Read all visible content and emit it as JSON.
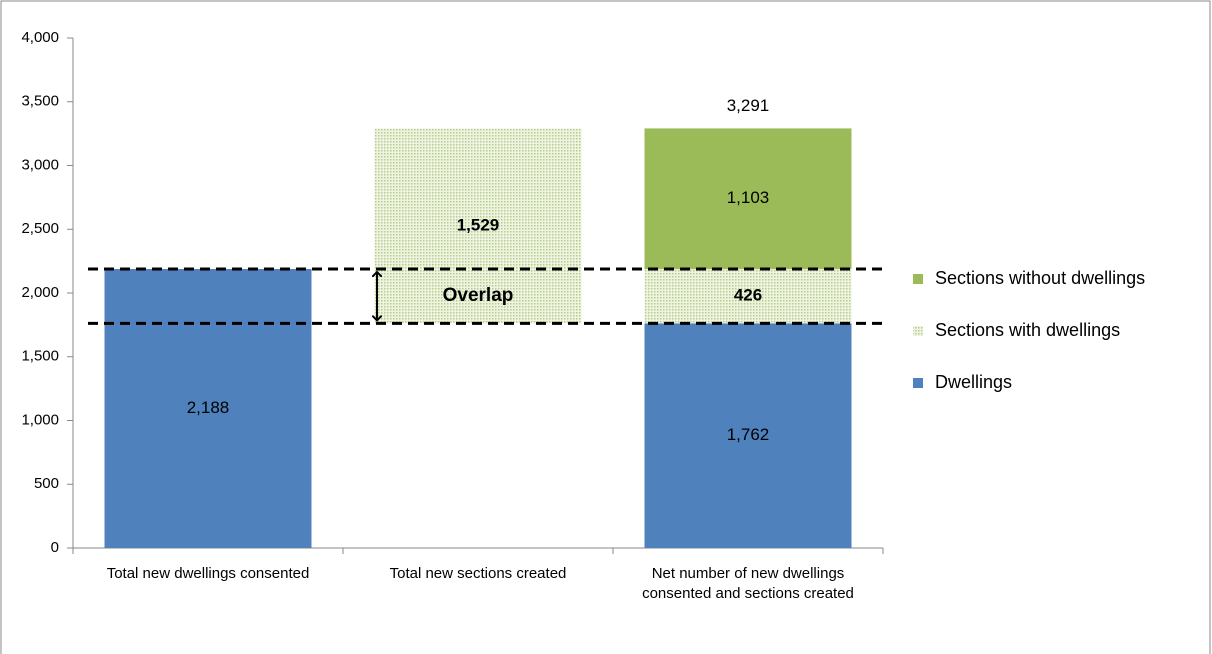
{
  "chart_data": {
    "type": "stacked-bar",
    "categories": [
      "Total new dwellings consented",
      "Total new sections created",
      "Net number of new dwellings consented and sections created"
    ],
    "series": [
      {
        "name": "Dwellings",
        "color": "#4f81bd",
        "values": [
          2188,
          null,
          1762
        ],
        "value_labels": [
          "2,188",
          null,
          "1,762"
        ]
      },
      {
        "name": "Sections with dwellings",
        "color": "#c3d69b",
        "pattern": "dotted",
        "values": [
          null,
          1529,
          426
        ],
        "value_labels": [
          null,
          "1,529",
          "426"
        ],
        "bold_labels": true
      },
      {
        "name": "Sections without dwellings",
        "color": "#9bbb59",
        "values": [
          null,
          null,
          1103
        ],
        "value_labels": [
          null,
          null,
          "1,103"
        ]
      }
    ],
    "totals": [
      null,
      null,
      3291
    ],
    "total_labels": [
      null,
      null,
      "3,291"
    ],
    "annotation": "Overlap",
    "ylim": [
      0,
      4000
    ],
    "yticks": [
      0,
      500,
      {
        "value": 1000,
        "label": "1,000"
      },
      {
        "value": 1500,
        "label": "1,500"
      },
      {
        "value": 2000,
        "label": "2,000"
      },
      {
        "value": 2500,
        "label": "2,500"
      },
      {
        "value": 3000,
        "label": "3,000"
      },
      {
        "value": 3500,
        "label": "3,500"
      },
      {
        "value": 4000,
        "label": "4,000"
      }
    ],
    "grid": false,
    "legend": "right"
  }
}
